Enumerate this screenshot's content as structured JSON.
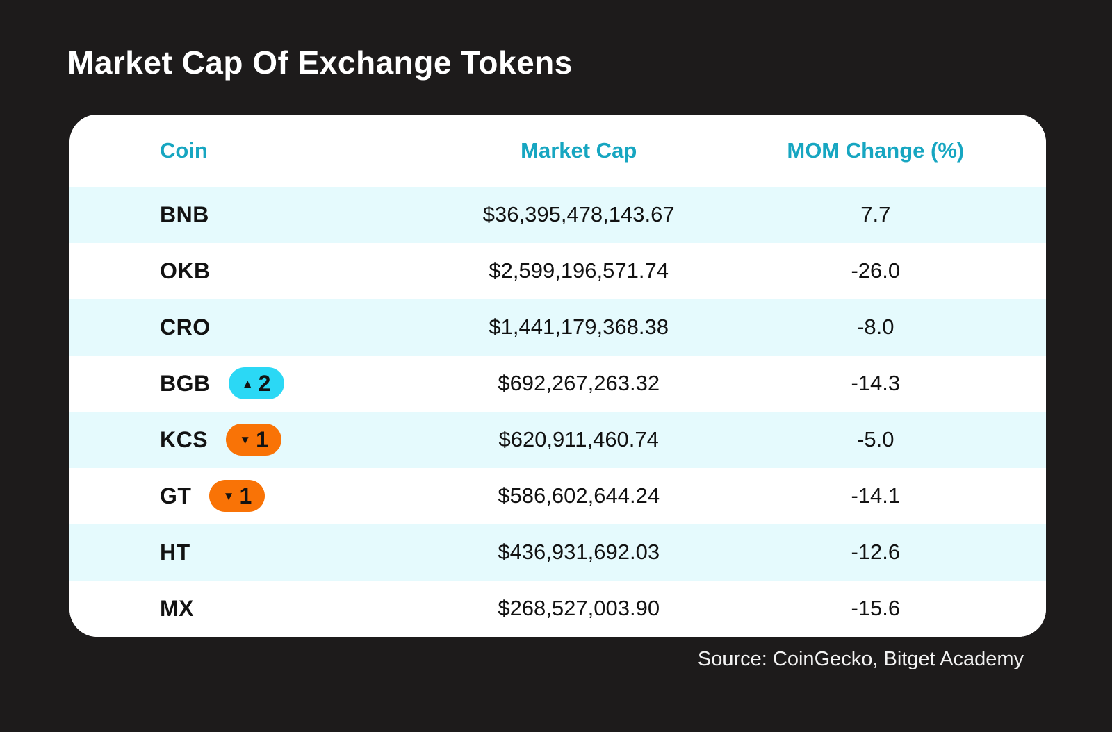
{
  "title": "Market Cap Of Exchange Tokens",
  "source": "Source: CoinGecko, Bitget Academy",
  "icons": {
    "up": "▲",
    "down": "▼"
  },
  "colors": {
    "background": "#1d1b1b",
    "card": "#ffffff",
    "row_alt": "#e5fafd",
    "header_text": "#17a6c1",
    "badge_up": "#2bd8f5",
    "badge_down": "#f97306",
    "text": "#121212"
  },
  "chart_data": {
    "type": "table",
    "title": "Market Cap Of Exchange Tokens",
    "columns": [
      "Coin",
      "Market Cap",
      "MOM Change (%)"
    ],
    "rows": [
      {
        "coin": "BNB",
        "market_cap": "$36,395,478,143.67",
        "mom_change": "7.7",
        "rank_change": null
      },
      {
        "coin": "OKB",
        "market_cap": "$2,599,196,571.74",
        "mom_change": "-26.0",
        "rank_change": null
      },
      {
        "coin": "CRO",
        "market_cap": "$1,441,179,368.38",
        "mom_change": "-8.0",
        "rank_change": null
      },
      {
        "coin": "BGB",
        "market_cap": "$692,267,263.32",
        "mom_change": "-14.3",
        "rank_change": {
          "direction": "up",
          "value": "2"
        }
      },
      {
        "coin": "KCS",
        "market_cap": "$620,911,460.74",
        "mom_change": "-5.0",
        "rank_change": {
          "direction": "down",
          "value": "1"
        }
      },
      {
        "coin": "GT",
        "market_cap": "$586,602,644.24",
        "mom_change": "-14.1",
        "rank_change": {
          "direction": "down",
          "value": "1"
        }
      },
      {
        "coin": "HT",
        "market_cap": "$436,931,692.03",
        "mom_change": "-12.6",
        "rank_change": null
      },
      {
        "coin": "MX",
        "market_cap": "$268,527,003.90",
        "mom_change": "-15.6",
        "rank_change": null
      }
    ],
    "source": "Source: CoinGecko, Bitget Academy"
  }
}
